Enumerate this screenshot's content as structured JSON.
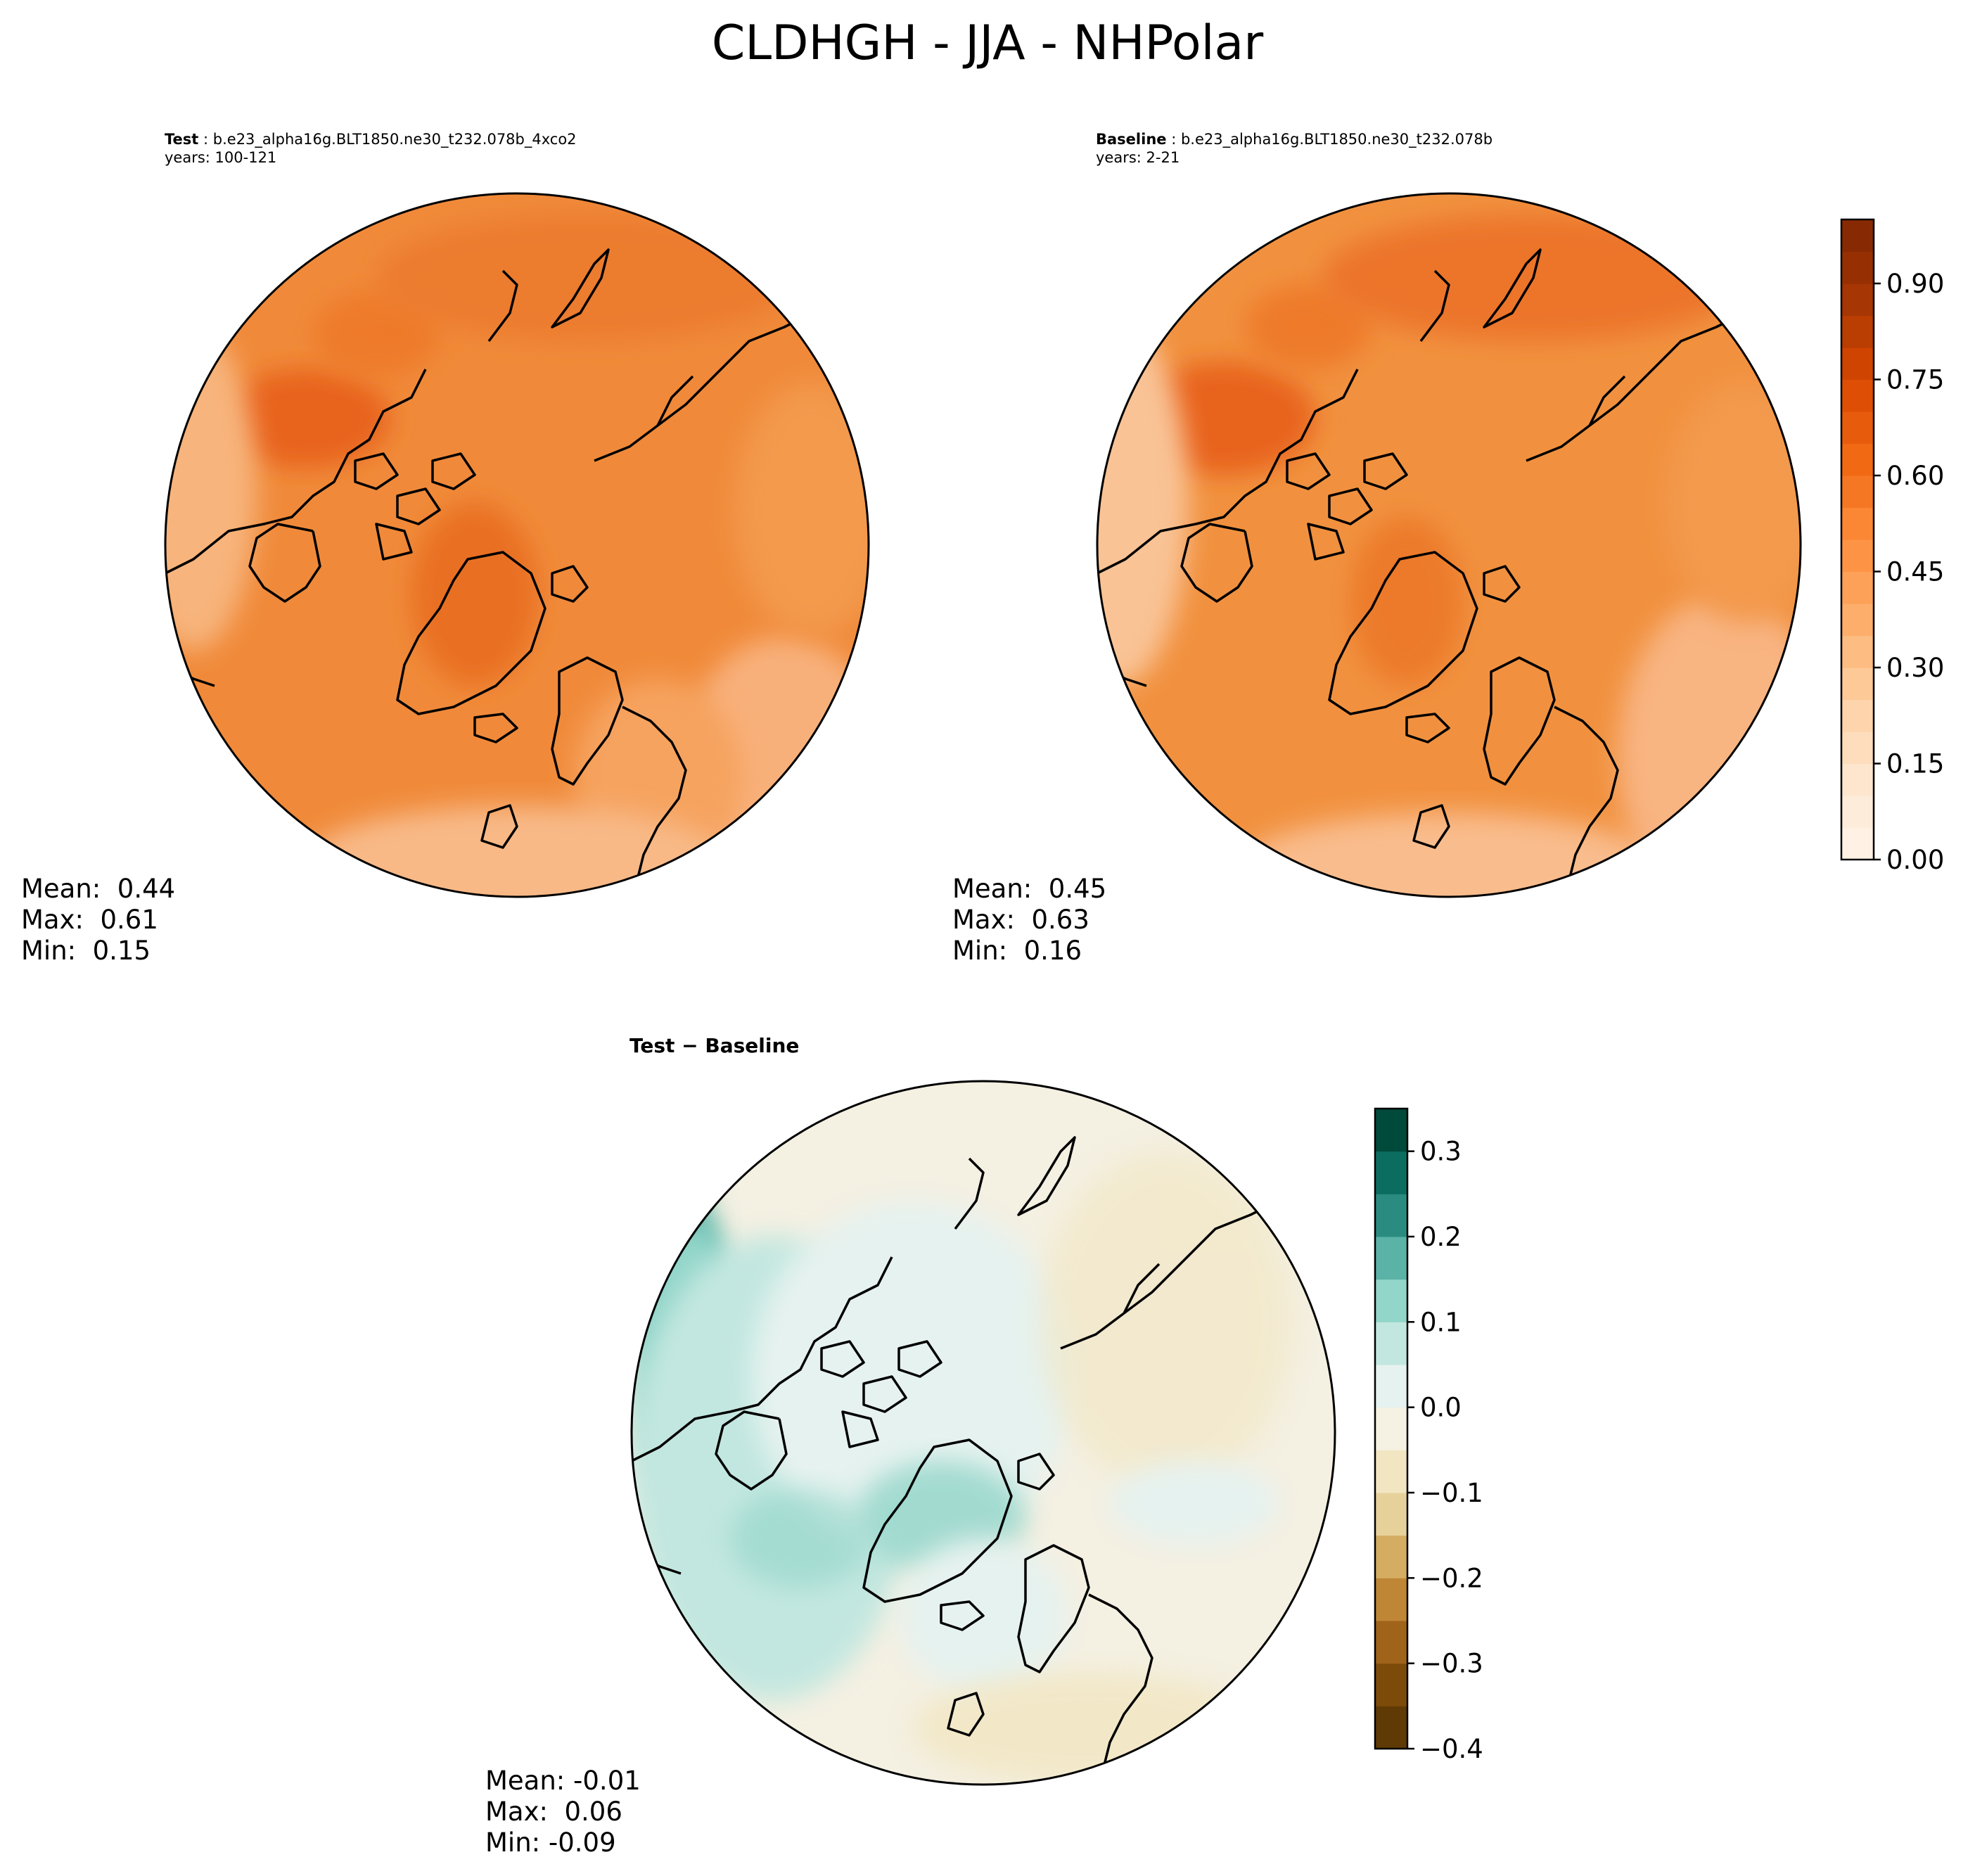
{
  "figure": {
    "title": "CLDHGH - JJA - NHPolar"
  },
  "panels": {
    "test": {
      "label": "Test",
      "case": "b.e23_alpha16g.BLT1850.ne30_t232.078b_4xco2",
      "years": "years: 100-121",
      "stats": {
        "mean": "Mean:  0.44",
        "max": "Max:  0.61",
        "min": "Min:  0.15"
      }
    },
    "baseline": {
      "label": "Baseline",
      "case": "b.e23_alpha16g.BLT1850.ne30_t232.078b",
      "years": "years: 2-21",
      "stats": {
        "mean": "Mean:  0.45",
        "max": "Max:  0.63",
        "min": "Min:  0.16"
      }
    },
    "diff": {
      "label": "Test − Baseline",
      "stats": {
        "mean": "Mean: -0.01",
        "max": "Max:  0.06",
        "min": "Min: -0.09"
      }
    }
  },
  "chart_data": [
    {
      "type": "heatmap",
      "panel": "test",
      "projection": "north-polar-stereographic",
      "colormap": "Oranges",
      "levels": [
        0.0,
        0.05,
        0.1,
        0.15,
        0.2,
        0.25,
        0.3,
        0.35,
        0.4,
        0.45,
        0.5,
        0.55,
        0.6,
        0.65,
        0.7,
        0.75,
        0.8,
        0.85,
        0.9,
        0.95,
        1.0
      ],
      "mean": 0.44,
      "max": 0.61,
      "min": 0.15
    },
    {
      "type": "heatmap",
      "panel": "baseline",
      "projection": "north-polar-stereographic",
      "colormap": "Oranges",
      "levels": [
        0.0,
        0.05,
        0.1,
        0.15,
        0.2,
        0.25,
        0.3,
        0.35,
        0.4,
        0.45,
        0.5,
        0.55,
        0.6,
        0.65,
        0.7,
        0.75,
        0.8,
        0.85,
        0.9,
        0.95,
        1.0
      ],
      "mean": 0.45,
      "max": 0.63,
      "min": 0.16
    },
    {
      "type": "heatmap",
      "panel": "diff",
      "projection": "north-polar-stereographic",
      "colormap": "BrBG",
      "levels": [
        -0.4,
        -0.35,
        -0.3,
        -0.25,
        -0.2,
        -0.15,
        -0.1,
        -0.05,
        0.0,
        0.05,
        0.1,
        0.15,
        0.2,
        0.25,
        0.3,
        0.35
      ],
      "mean": -0.01,
      "max": 0.06,
      "min": -0.09
    }
  ],
  "colorbars": {
    "main": {
      "range": [
        0.0,
        1.0
      ],
      "ticks": [
        "0.00",
        "0.15",
        "0.30",
        "0.45",
        "0.60",
        "0.75",
        "0.90"
      ],
      "tick_values": [
        0.0,
        0.15,
        0.3,
        0.45,
        0.6,
        0.75,
        0.9
      ],
      "bins": 20,
      "low_color": "#fff5eb",
      "high_color": "#7f2704"
    },
    "diff": {
      "range": [
        -0.4,
        0.35
      ],
      "ticks": [
        "−0.4",
        "−0.3",
        "−0.2",
        "−0.1",
        "0.0",
        "0.1",
        "0.2",
        "0.3"
      ],
      "tick_values": [
        -0.4,
        -0.3,
        -0.2,
        -0.1,
        0.0,
        0.1,
        0.2,
        0.3
      ],
      "bins": 15,
      "colors": [
        "#5f3a05",
        "#7d4b09",
        "#a0631a",
        "#bf8636",
        "#d4ad62",
        "#e7d19a",
        "#f2e6c2",
        "#f5f1e3",
        "#e6f2ef",
        "#c2e7e0",
        "#92d5c9",
        "#5ab3a6",
        "#2a8c80",
        "#0b6d60",
        "#004a3b"
      ]
    }
  },
  "colors": {
    "test_fill": "#f08a3a",
    "baseline_fill": "#f1913f",
    "diff_fill": "#f4f0e2",
    "coastline": "#000000"
  }
}
